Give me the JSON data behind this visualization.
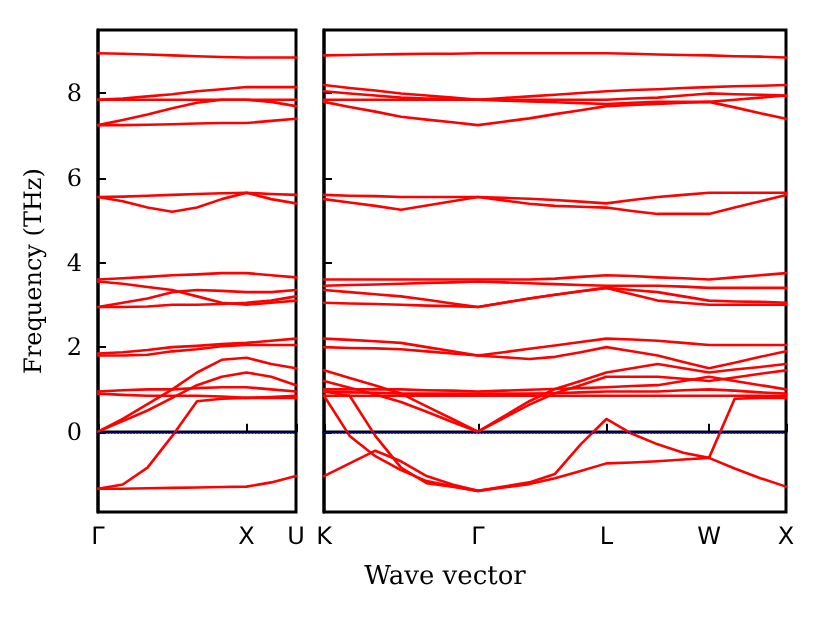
{
  "chart_data": [
    {
      "type": "line",
      "ylabel": "Frequency (THz)",
      "categories": [
        "Γ",
        null,
        null,
        null,
        null,
        null,
        "X",
        null,
        "U"
      ],
      "ylim": [
        -1.9,
        9.5
      ],
      "yticks": [
        0,
        2,
        4,
        6,
        8
      ],
      "marker": "none",
      "line_style": "solid",
      "ref_lines": [
        {
          "axis": "y",
          "value": 0,
          "color": "#0000ff",
          "line_style": "dotted"
        }
      ],
      "series": [
        {
          "color": "#ff0000",
          "values": [
            8.95,
            8.94,
            8.92,
            8.9,
            8.88,
            8.86,
            8.85,
            8.85,
            8.85
          ]
        },
        {
          "color": "#ff0000",
          "values": [
            7.85,
            7.88,
            7.93,
            7.98,
            8.05,
            8.1,
            8.15,
            8.15,
            8.15
          ]
        },
        {
          "color": "#ff0000",
          "values": [
            7.85,
            7.85,
            7.85,
            7.85,
            7.85,
            7.85,
            7.85,
            7.85,
            7.85
          ]
        },
        {
          "color": "#ff0000",
          "values": [
            7.25,
            7.37,
            7.5,
            7.65,
            7.78,
            7.85,
            7.85,
            7.8,
            7.7
          ]
        },
        {
          "color": "#ff0000",
          "values": [
            7.25,
            7.25,
            7.26,
            7.27,
            7.29,
            7.3,
            7.3,
            7.35,
            7.4
          ]
        },
        {
          "color": "#ff0000",
          "values": [
            5.55,
            5.56,
            5.58,
            5.6,
            5.62,
            5.64,
            5.65,
            5.62,
            5.6
          ]
        },
        {
          "color": "#ff0000",
          "values": [
            5.55,
            5.45,
            5.3,
            5.2,
            5.3,
            5.5,
            5.65,
            5.5,
            5.4
          ]
        },
        {
          "color": "#ff0000",
          "values": [
            3.6,
            3.63,
            3.66,
            3.7,
            3.72,
            3.75,
            3.75,
            3.7,
            3.65
          ]
        },
        {
          "color": "#ff0000",
          "values": [
            3.55,
            3.5,
            3.42,
            3.35,
            3.2,
            3.05,
            3.0,
            3.05,
            3.1
          ]
        },
        {
          "color": "#ff0000",
          "values": [
            2.95,
            3.05,
            3.15,
            3.3,
            3.35,
            3.33,
            3.3,
            3.3,
            3.35
          ]
        },
        {
          "color": "#ff0000",
          "values": [
            2.95,
            2.95,
            2.96,
            3.0,
            3.0,
            3.02,
            3.05,
            3.1,
            3.2
          ]
        },
        {
          "color": "#ff0000",
          "values": [
            1.85,
            1.88,
            1.93,
            2.0,
            2.03,
            2.07,
            2.1,
            2.15,
            2.2
          ]
        },
        {
          "color": "#ff0000",
          "values": [
            1.8,
            1.8,
            1.82,
            1.9,
            1.95,
            2.02,
            2.05,
            2.05,
            2.05
          ]
        },
        {
          "color": "#ff0000",
          "values": [
            0,
            0.3,
            0.65,
            1.0,
            1.4,
            1.7,
            1.75,
            1.6,
            1.5
          ]
        },
        {
          "color": "#ff0000",
          "values": [
            0,
            0.25,
            0.5,
            0.8,
            1.1,
            1.3,
            1.4,
            1.3,
            1.1
          ]
        },
        {
          "color": "#ff0000",
          "values": [
            0.95,
            0.98,
            1.0,
            1.0,
            1.03,
            1.05,
            1.05,
            1.0,
            0.95
          ]
        },
        {
          "color": "#ff0000",
          "values": [
            0.9,
            0.87,
            0.85,
            0.85,
            0.85,
            0.83,
            0.8,
            0.8,
            0.8
          ]
        },
        {
          "color": "#ff0000",
          "values": [
            -1.35,
            -1.25,
            -0.85,
            -0.1,
            0.72,
            0.78,
            0.8,
            0.82,
            0.85
          ]
        },
        {
          "color": "#ff0000",
          "values": [
            -1.35,
            -1.35,
            -1.34,
            -1.33,
            -1.32,
            -1.31,
            -1.3,
            -1.2,
            -1.05
          ]
        }
      ]
    },
    {
      "type": "line",
      "xlabel": "Wave vector",
      "categories": [
        "K",
        null,
        null,
        null,
        null,
        null,
        "Γ",
        null,
        null,
        null,
        null,
        "L",
        null,
        null,
        null,
        "W",
        null,
        null,
        "X"
      ],
      "ylim": [
        -1.9,
        9.5
      ],
      "yticks": [
        0,
        2,
        4,
        6,
        8
      ],
      "tick_labels": "x",
      "marker": "none",
      "line_style": "solid",
      "ref_lines": [
        {
          "axis": "y",
          "value": 0,
          "color": "#0000ff",
          "line_style": "dotted"
        }
      ],
      "series": [
        {
          "color": "#ff0000",
          "values": [
            8.9,
            8.91,
            8.92,
            8.93,
            8.94,
            8.94,
            8.95,
            8.95,
            8.95,
            8.95,
            8.95,
            8.95,
            8.94,
            8.92,
            8.91,
            8.9,
            8.88,
            8.87,
            8.85
          ]
        },
        {
          "color": "#ff0000",
          "values": [
            8.2,
            8.13,
            8.07,
            8.0,
            7.95,
            7.9,
            7.85,
            7.89,
            7.93,
            7.97,
            8.01,
            8.05,
            8.08,
            8.1,
            8.13,
            8.15,
            8.17,
            8.18,
            8.2
          ]
        },
        {
          "color": "#ff0000",
          "values": [
            8.05,
            8.0,
            7.95,
            7.9,
            7.88,
            7.87,
            7.85,
            7.85,
            7.85,
            7.85,
            7.85,
            7.85,
            7.88,
            7.9,
            7.95,
            8.0,
            7.98,
            7.97,
            7.95
          ]
        },
        {
          "color": "#ff0000",
          "values": [
            7.85,
            7.85,
            7.85,
            7.85,
            7.85,
            7.85,
            7.85,
            7.83,
            7.81,
            7.79,
            7.77,
            7.75,
            7.78,
            7.8,
            7.8,
            7.8,
            7.85,
            7.9,
            7.95
          ]
        },
        {
          "color": "#ff0000",
          "values": [
            7.8,
            7.68,
            7.57,
            7.45,
            7.38,
            7.32,
            7.25,
            7.33,
            7.41,
            7.51,
            7.6,
            7.7,
            7.73,
            7.75,
            7.78,
            7.8,
            7.67,
            7.53,
            7.4
          ]
        },
        {
          "color": "#ff0000",
          "values": [
            5.6,
            5.58,
            5.57,
            5.55,
            5.55,
            5.55,
            5.55,
            5.53,
            5.51,
            5.48,
            5.44,
            5.4,
            5.48,
            5.55,
            5.6,
            5.65,
            5.65,
            5.65,
            5.65
          ]
        },
        {
          "color": "#ff0000",
          "values": [
            5.5,
            5.42,
            5.34,
            5.25,
            5.35,
            5.45,
            5.55,
            5.47,
            5.39,
            5.34,
            5.32,
            5.3,
            5.22,
            5.15,
            5.15,
            5.15,
            5.3,
            5.45,
            5.6
          ]
        },
        {
          "color": "#ff0000",
          "values": [
            3.6,
            3.6,
            3.6,
            3.6,
            3.6,
            3.6,
            3.6,
            3.6,
            3.6,
            3.62,
            3.66,
            3.7,
            3.68,
            3.65,
            3.63,
            3.6,
            3.65,
            3.7,
            3.75
          ]
        },
        {
          "color": "#ff0000",
          "values": [
            3.45,
            3.47,
            3.48,
            3.5,
            3.52,
            3.53,
            3.55,
            3.53,
            3.51,
            3.49,
            3.47,
            3.45,
            3.45,
            3.45,
            3.43,
            3.4,
            3.4,
            3.4,
            3.4
          ]
        },
        {
          "color": "#ff0000",
          "values": [
            3.35,
            3.3,
            3.25,
            3.2,
            3.12,
            3.03,
            2.95,
            3.05,
            3.15,
            3.24,
            3.32,
            3.4,
            3.35,
            3.3,
            3.2,
            3.1,
            3.08,
            3.07,
            3.05
          ]
        },
        {
          "color": "#ff0000",
          "values": [
            3.05,
            3.03,
            3.02,
            3.0,
            2.98,
            2.97,
            2.95,
            3.05,
            3.15,
            3.24,
            3.32,
            3.4,
            3.25,
            3.1,
            3.05,
            3.0,
            3.0,
            3.0,
            3.0
          ]
        },
        {
          "color": "#ff0000",
          "values": [
            2.2,
            2.17,
            2.14,
            2.1,
            2.0,
            1.9,
            1.8,
            1.88,
            1.96,
            2.04,
            2.12,
            2.2,
            2.18,
            2.15,
            2.1,
            2.05,
            2.05,
            2.05,
            2.05
          ]
        },
        {
          "color": "#ff0000",
          "values": [
            2.0,
            1.98,
            1.97,
            1.95,
            1.9,
            1.85,
            1.8,
            1.76,
            1.72,
            1.77,
            1.88,
            2.0,
            1.9,
            1.8,
            1.65,
            1.5,
            1.63,
            1.77,
            1.9
          ]
        },
        {
          "color": "#ff0000",
          "values": [
            1.45,
            1.27,
            1.09,
            0.9,
            0.6,
            0.3,
            0,
            0.36,
            0.72,
            1.01,
            1.2,
            1.4,
            1.5,
            1.6,
            1.5,
            1.4,
            1.47,
            1.53,
            1.6
          ]
        },
        {
          "color": "#ff0000",
          "values": [
            1.2,
            1.04,
            0.88,
            0.7,
            0.47,
            0.23,
            0,
            0.32,
            0.64,
            0.91,
            1.1,
            1.3,
            1.3,
            1.3,
            1.25,
            1.2,
            1.28,
            1.37,
            1.45
          ]
        },
        {
          "color": "#ff0000",
          "values": [
            1.0,
            1.0,
            1.0,
            1.0,
            0.98,
            0.97,
            0.95,
            0.97,
            0.99,
            1.01,
            1.03,
            1.05,
            1.08,
            1.1,
            1.2,
            1.3,
            1.2,
            1.1,
            1.0
          ]
        },
        {
          "color": "#ff0000",
          "values": [
            0.95,
            0.93,
            0.92,
            0.9,
            0.9,
            0.9,
            0.9,
            0.9,
            0.9,
            0.91,
            0.93,
            0.95,
            0.95,
            0.95,
            0.98,
            1.0,
            0.97,
            0.93,
            0.9
          ]
        },
        {
          "color": "#ff0000",
          "values": [
            0.85,
            0.85,
            0.85,
            0.85,
            0.85,
            0.85,
            0.85,
            0.85,
            0.85,
            0.85,
            0.85,
            0.85,
            0.85,
            0.85,
            0.85,
            0.85,
            0.85,
            0.85,
            0.85
          ]
        },
        {
          "color": "#ff0000",
          "values": [
            0.85,
            -0.1,
            -0.58,
            -0.91,
            -1.17,
            -1.29,
            -1.4,
            -1.32,
            -1.24,
            -1.1,
            -0.93,
            -0.75,
            -0.73,
            -0.7,
            -0.66,
            -0.62,
            -0.87,
            -1.1,
            -1.3
          ]
        },
        {
          "color": "#ff0000",
          "values": [
            -1.05,
            -0.75,
            -0.45,
            -0.7,
            -1.05,
            -1.25,
            -1.4,
            -1.3,
            -1.2,
            -1.0,
            -0.3,
            0.3,
            -0.05,
            -0.3,
            -0.5,
            -0.62,
            0.78,
            0.8,
            0.8
          ]
        },
        {
          "color": "#ff0000",
          "values": [
            0.95,
            0.85,
            -0.1,
            -0.85,
            -1.22,
            -1.3,
            -1.4,
            null,
            null,
            null,
            null,
            null,
            null,
            null,
            null,
            null,
            null,
            null,
            null
          ]
        }
      ]
    }
  ]
}
